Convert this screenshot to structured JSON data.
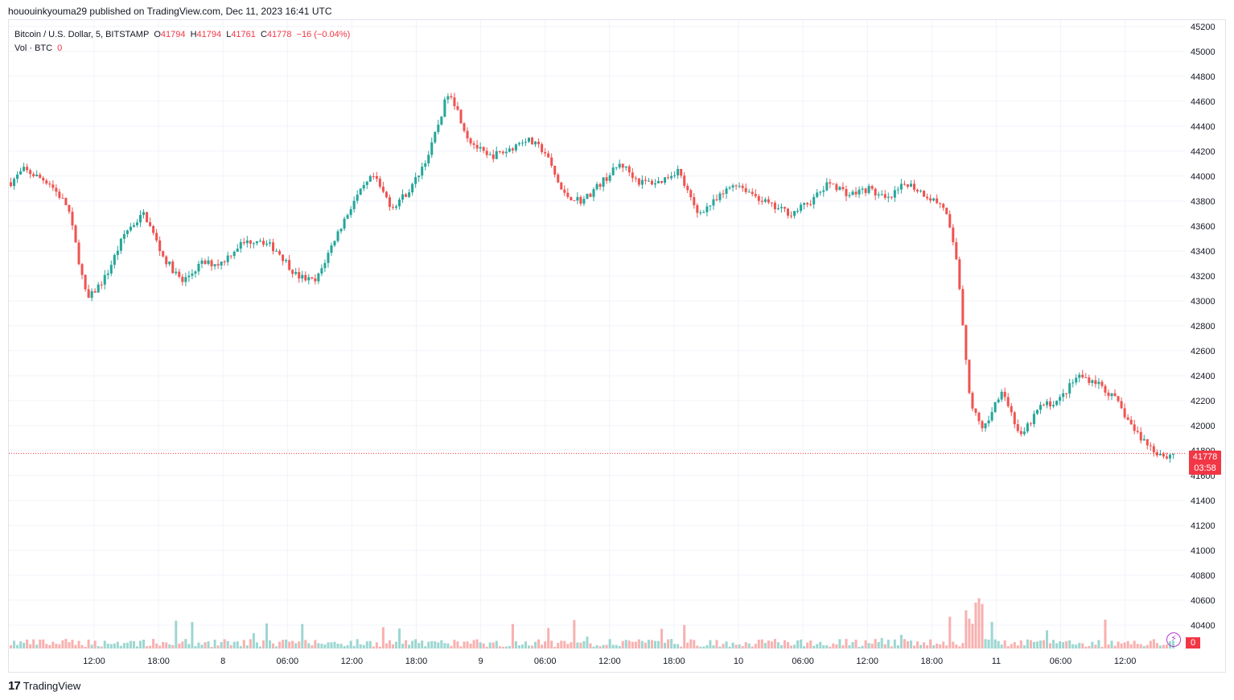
{
  "header": {
    "published": "hououinkyouma29 published on TradingView.com, Dec 11, 2023 16:41 UTC"
  },
  "legend": {
    "symbol": "Bitcoin / U.S. Dollar, 5, BITSTAMP",
    "open_label": "O",
    "open": "41794",
    "high_label": "H",
    "high": "41794",
    "low_label": "L",
    "low": "41761",
    "close_label": "C",
    "close": "41778",
    "change": "−16 (−0.04%)",
    "vol_label": "Vol · BTC",
    "vol_value": "0"
  },
  "price_tag": {
    "price": "41778",
    "countdown": "03:58"
  },
  "vol_tag": "0",
  "footer": {
    "brand": "TradingView",
    "logo": "tradingview-logo-icon"
  },
  "colors": {
    "up": "#26a69a",
    "down": "#ef5350",
    "grid": "#f0f3fa",
    "price_line": "#f23645"
  },
  "chart_data": {
    "type": "candlestick",
    "title": "Bitcoin / U.S. Dollar, 5, BITSTAMP",
    "y_axis": {
      "ylim": [
        40200,
        45250
      ],
      "ticks": [
        40400,
        40600,
        40800,
        41000,
        41200,
        41400,
        41600,
        41800,
        42000,
        42200,
        42400,
        42600,
        42800,
        43000,
        43200,
        43400,
        43600,
        43800,
        44000,
        44200,
        44400,
        44600,
        44800,
        45000,
        45200
      ]
    },
    "x_axis": {
      "ticks": [
        "12:00",
        "18:00",
        "8",
        "06:00",
        "12:00",
        "18:00",
        "9",
        "06:00",
        "12:00",
        "18:00",
        "10",
        "06:00",
        "12:00",
        "18:00",
        "11",
        "06:00",
        "12:00"
      ]
    },
    "price_path": [
      [
        0,
        43950
      ],
      [
        2,
        44050
      ],
      [
        6,
        43950
      ],
      [
        9,
        43750
      ],
      [
        12,
        43000
      ],
      [
        15,
        43200
      ],
      [
        18,
        43550
      ],
      [
        21,
        43700
      ],
      [
        24,
        43350
      ],
      [
        27,
        43150
      ],
      [
        30,
        43300
      ],
      [
        33,
        43300
      ],
      [
        36,
        43450
      ],
      [
        39,
        43500
      ],
      [
        42,
        43400
      ],
      [
        45,
        43200
      ],
      [
        48,
        43150
      ],
      [
        51,
        43500
      ],
      [
        54,
        43800
      ],
      [
        57,
        44000
      ],
      [
        60,
        43750
      ],
      [
        63,
        43900
      ],
      [
        66,
        44200
      ],
      [
        69,
        44700
      ],
      [
        72,
        44300
      ],
      [
        75,
        44150
      ],
      [
        78,
        44200
      ],
      [
        81,
        44300
      ],
      [
        84,
        44200
      ],
      [
        87,
        43850
      ],
      [
        90,
        43800
      ],
      [
        93,
        43950
      ],
      [
        96,
        44100
      ],
      [
        99,
        43950
      ],
      [
        102,
        43950
      ],
      [
        105,
        44050
      ],
      [
        108,
        43700
      ],
      [
        111,
        43800
      ],
      [
        114,
        43950
      ],
      [
        117,
        43850
      ],
      [
        120,
        43750
      ],
      [
        123,
        43700
      ],
      [
        126,
        43800
      ],
      [
        129,
        43950
      ],
      [
        132,
        43850
      ],
      [
        135,
        43900
      ],
      [
        138,
        43800
      ],
      [
        141,
        43950
      ],
      [
        144,
        43850
      ],
      [
        147,
        43750
      ],
      [
        149,
        43300
      ],
      [
        151,
        42200
      ],
      [
        153,
        41950
      ],
      [
        156,
        42300
      ],
      [
        159,
        41900
      ],
      [
        162,
        42150
      ],
      [
        165,
        42200
      ],
      [
        168,
        42400
      ],
      [
        171,
        42350
      ],
      [
        174,
        42200
      ],
      [
        177,
        41950
      ],
      [
        180,
        41800
      ],
      [
        182,
        41750
      ],
      [
        183,
        41778
      ]
    ],
    "volume": {
      "max_label": "0",
      "units": "BTC"
    },
    "last_price": 41778
  }
}
